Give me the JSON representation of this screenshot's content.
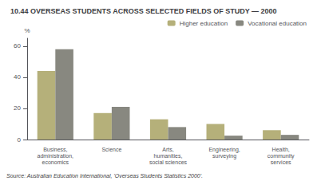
{
  "chart_data": {
    "type": "bar",
    "title": "10.44 OVERSEAS STUDENTS ACROSS SELECTED FIELDS OF STUDY — 2000",
    "categories": [
      "Business,\nadministration,\neconomics",
      "Science",
      "Arts,\nhumanities,\nsocial sciences",
      "Engineering,\nsurveying",
      "Health,\ncommunity\nservices"
    ],
    "series": [
      {
        "name": "Higher education",
        "color": "#b5b07a",
        "values": [
          44,
          17,
          13,
          10,
          6
        ]
      },
      {
        "name": "Vocational education",
        "color": "#888880",
        "values": [
          58,
          21,
          8,
          2.5,
          3
        ]
      }
    ],
    "ylabel": "%",
    "ylim": [
      0,
      65
    ],
    "yticks": [
      0,
      20,
      40,
      60
    ],
    "grid": false,
    "legend": "upper right",
    "annotations": [
      "Source: Australian Education International, 'Overseas Students Statistics 2000'."
    ]
  }
}
